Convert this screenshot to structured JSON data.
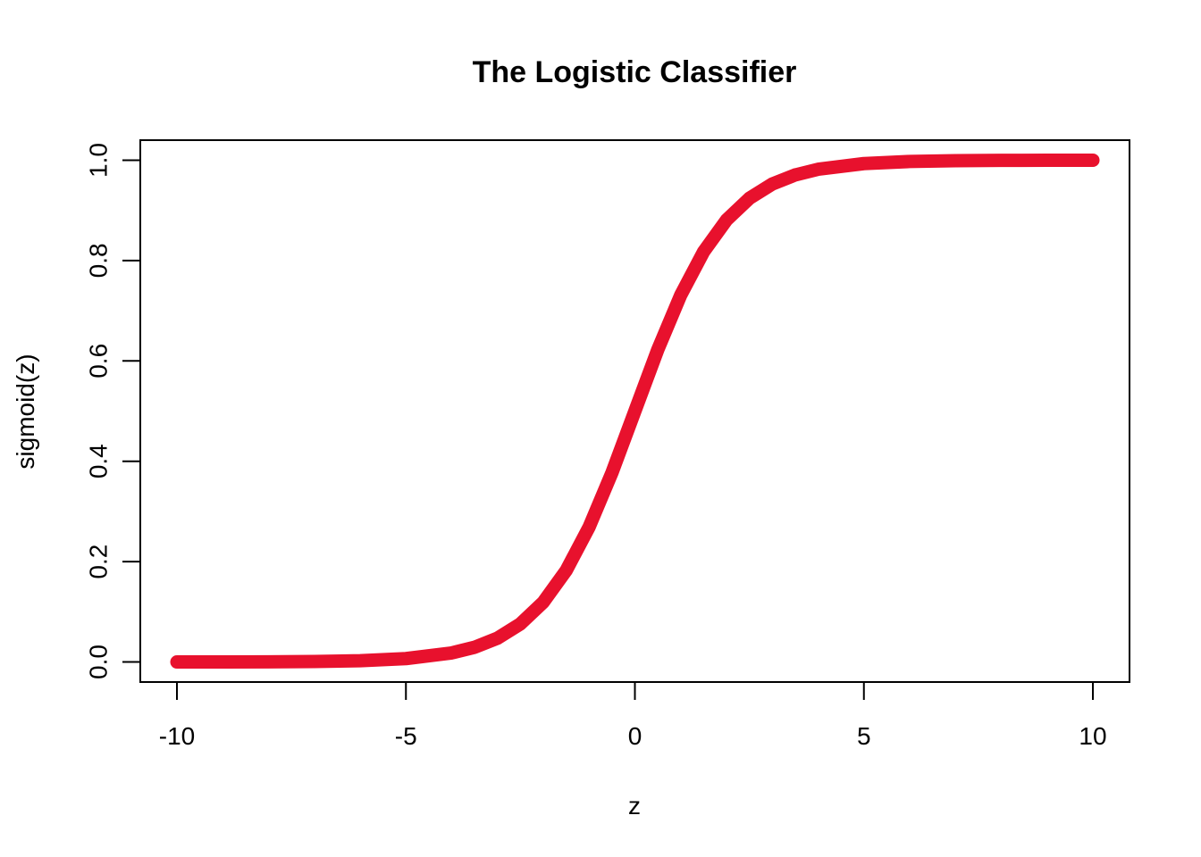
{
  "chart_data": {
    "type": "line",
    "title": "The Logistic Classifier",
    "xlabel": "z",
    "ylabel": "sigmoid(z)",
    "xlim": [
      -10.8,
      10.8
    ],
    "ylim": [
      -0.04,
      1.04
    ],
    "x_ticks": [
      {
        "value": -10,
        "label": "-10"
      },
      {
        "value": -5,
        "label": "-5"
      },
      {
        "value": 0,
        "label": "0"
      },
      {
        "value": 5,
        "label": "5"
      },
      {
        "value": 10,
        "label": "10"
      }
    ],
    "y_ticks": [
      {
        "value": 0.0,
        "label": "0.0"
      },
      {
        "value": 0.2,
        "label": "0.2"
      },
      {
        "value": 0.4,
        "label": "0.4"
      },
      {
        "value": 0.6,
        "label": "0.6"
      },
      {
        "value": 0.8,
        "label": "0.8"
      },
      {
        "value": 1.0,
        "label": "1.0"
      }
    ],
    "grid": false,
    "series": [
      {
        "color": "#e8112d",
        "x": [
          -10,
          -9,
          -8,
          -7,
          -6,
          -5,
          -4,
          -3.5,
          -3,
          -2.5,
          -2,
          -1.5,
          -1,
          -0.5,
          0,
          0.5,
          1,
          1.5,
          2,
          2.5,
          3,
          3.5,
          4,
          5,
          6,
          7,
          8,
          9,
          10
        ],
        "y": [
          0.0,
          0.0001,
          0.0003,
          0.0009,
          0.0025,
          0.0067,
          0.018,
          0.0293,
          0.0474,
          0.0759,
          0.1192,
          0.1824,
          0.2689,
          0.3775,
          0.5,
          0.6225,
          0.7311,
          0.8176,
          0.8808,
          0.9241,
          0.9526,
          0.9707,
          0.982,
          0.9933,
          0.9975,
          0.9991,
          0.9997,
          0.9999,
          1.0
        ]
      }
    ]
  }
}
